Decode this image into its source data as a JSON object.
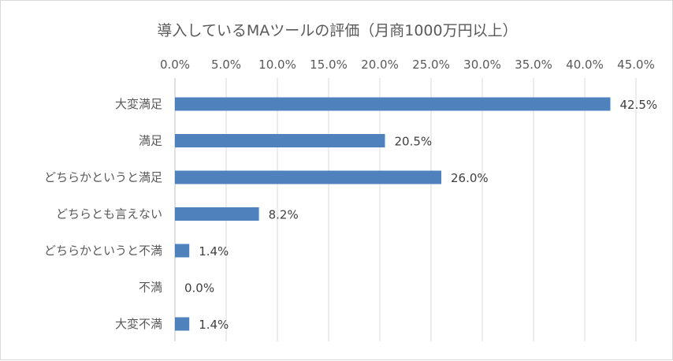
{
  "chart_data": {
    "type": "bar",
    "orientation": "horizontal",
    "title": "導入しているMAツールの評価（月商1000万円以上）",
    "categories": [
      "大変満足",
      "満足",
      "どちらかというと満足",
      "どちらとも言えない",
      "どちらかというと不満",
      "不満",
      "大変不満"
    ],
    "values": [
      42.5,
      20.5,
      26.0,
      8.2,
      1.4,
      0.0,
      1.4
    ],
    "data_labels": [
      "42.5%",
      "20.5%",
      "26.0%",
      "8.2%",
      "1.4%",
      "0.0%",
      "1.4%"
    ],
    "xlim": [
      0,
      45
    ],
    "xticks": [
      0,
      5,
      10,
      15,
      20,
      25,
      30,
      35,
      40,
      45
    ],
    "xtick_labels": [
      "0.0%",
      "5.0%",
      "10.0%",
      "15.0%",
      "20.0%",
      "25.0%",
      "30.0%",
      "35.0%",
      "40.0%",
      "45.0%"
    ],
    "x_axis_position": "top",
    "grid": true,
    "legend": "none",
    "bar_color": "#4f81bd"
  }
}
